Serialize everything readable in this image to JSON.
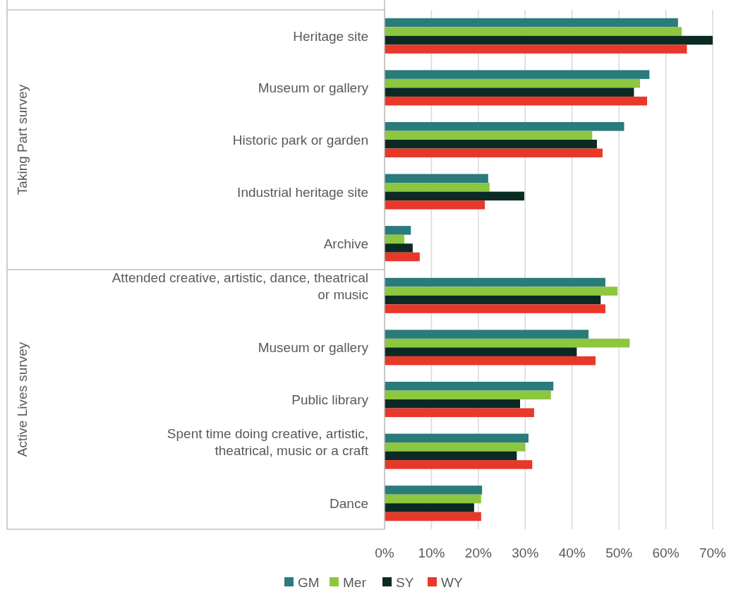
{
  "chart_data": {
    "type": "bar",
    "orientation": "horizontal",
    "categories": [
      "Heritage site",
      "Museum or gallery",
      "Historic park or garden",
      "Industrial heritage site",
      "Archive",
      "Attended creative, artistic, dance, theatrical or music",
      "Museum or gallery",
      "Public library",
      "Spent time doing creative, artistic, theatrical, music or a craft",
      "Dance"
    ],
    "series": [
      {
        "name": "GM",
        "color": "#2a7b7b",
        "values": [
          62.6,
          56.5,
          51.1,
          22.1,
          5.6,
          47.1,
          43.5,
          36.0,
          30.7,
          20.8
        ]
      },
      {
        "name": "Mer",
        "color": "#8dc63f",
        "values": [
          63.4,
          54.5,
          44.3,
          22.4,
          4.2,
          49.7,
          52.3,
          35.5,
          30.0,
          20.6
        ]
      },
      {
        "name": "SY",
        "color": "#0b2a24",
        "values": [
          70.0,
          53.2,
          45.3,
          29.8,
          6.0,
          46.1,
          41.0,
          28.9,
          28.2,
          19.1
        ]
      },
      {
        "name": "WY",
        "color": "#e8382a",
        "values": [
          64.5,
          56.0,
          46.5,
          21.4,
          7.5,
          47.1,
          45.0,
          31.9,
          31.5,
          20.6
        ]
      }
    ],
    "xlim": [
      0,
      70
    ],
    "xticks": [
      {
        "value": 0,
        "label": "0%"
      },
      {
        "value": 10,
        "label": "10%"
      },
      {
        "value": 20,
        "label": "20%"
      },
      {
        "value": 30,
        "label": "30%"
      },
      {
        "value": 40,
        "label": "40%"
      },
      {
        "value": 50,
        "label": "50%"
      },
      {
        "value": 60,
        "label": "60%"
      },
      {
        "value": 70,
        "label": "70%"
      }
    ],
    "grid": "x",
    "legend": "bottom",
    "annotations": [
      "Taking Part survey",
      "Active Lives survey"
    ]
  }
}
